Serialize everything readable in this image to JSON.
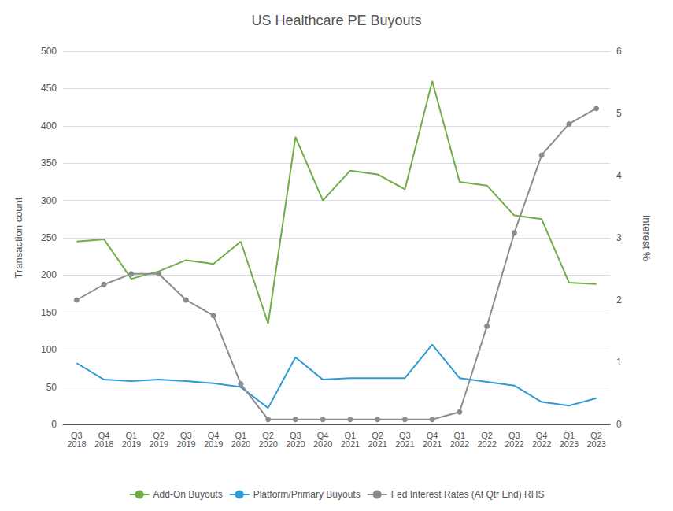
{
  "chart_data": {
    "type": "line",
    "title": "US Healthcare PE Buyouts",
    "ylabel": "Transaction count",
    "y2label": "Interest %",
    "categories": [
      "Q3\n2018",
      "Q4\n2018",
      "Q1\n2019",
      "Q2\n2019",
      "Q3\n2019",
      "Q4\n2019",
      "Q1\n2020",
      "Q2\n2020",
      "Q3\n2020",
      "Q4\n2020",
      "Q1\n2021",
      "Q2\n2021",
      "Q3\n2021",
      "Q4\n2021",
      "Q1\n2022",
      "Q2\n2022",
      "Q3\n2022",
      "Q4\n2022",
      "Q1\n2023",
      "Q2\n2023"
    ],
    "series": [
      {
        "name": "Add-On Buyouts",
        "color": "#70ad47",
        "marker": "none",
        "values": [
          245,
          248,
          195,
          205,
          220,
          215,
          245,
          135,
          385,
          300,
          340,
          335,
          315,
          460,
          325,
          320,
          280,
          275,
          190,
          188
        ]
      },
      {
        "name": "Platform/Primary Buyouts",
        "color": "#2e9cd3",
        "marker": "none",
        "values": [
          82,
          60,
          58,
          60,
          58,
          55,
          50,
          22,
          90,
          60,
          62,
          62,
          62,
          107,
          62,
          57,
          52,
          30,
          25,
          35
        ]
      },
      {
        "name": "Fed Interest Rates (At Qtr End) RHS",
        "color": "#8c8c8c",
        "marker": "circle",
        "axis": "y2",
        "values": [
          2.0,
          2.25,
          2.42,
          2.42,
          2.0,
          1.75,
          0.65,
          0.08,
          0.08,
          0.08,
          0.08,
          0.08,
          0.08,
          0.08,
          0.2,
          1.58,
          3.08,
          4.33,
          4.83,
          5.08
        ]
      }
    ],
    "ylim": [
      0,
      500
    ],
    "yticks": [
      0,
      50,
      100,
      150,
      200,
      250,
      300,
      350,
      400,
      450,
      500
    ],
    "y2lim": [
      0,
      6
    ],
    "y2ticks": [
      0,
      1,
      2,
      3,
      4,
      5,
      6
    ],
    "grid": true,
    "legend": "bottom"
  }
}
